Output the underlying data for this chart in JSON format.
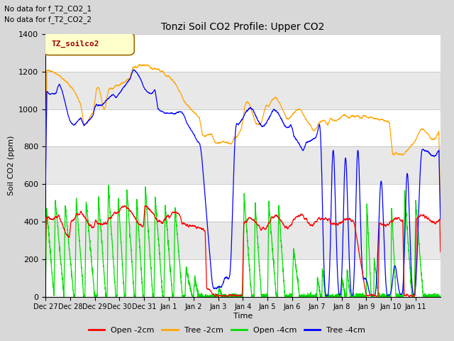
{
  "title": "Tonzi Soil CO2 Profile: Upper CO2",
  "ylabel": "Soil CO2 (ppm)",
  "xlabel": "Time",
  "subtitle_lines": [
    "No data for f_T2_CO2_1",
    "No data for f_T2_CO2_2"
  ],
  "legend_label_box": "TZ_soilco2",
  "ylim": [
    0,
    1400
  ],
  "background_color": "#d8d8d8",
  "plot_bg_color": "#d8d8d8",
  "colors": {
    "open_2cm": "#ff0000",
    "tree_2cm": "#ffa500",
    "open_4cm": "#00dd00",
    "tree_4cm": "#0000ff"
  },
  "legend_entries": [
    "Open -2cm",
    "Tree -2cm",
    "Open -4cm",
    "Tree -4cm"
  ],
  "xtick_labels": [
    "Dec 27",
    "Dec 28",
    "Dec 29",
    "Dec 30",
    "Dec 31",
    "Jan 1",
    "Jan 2",
    "Jan 3",
    "Jan 4",
    "Jan 5",
    "Jan 6",
    "Jan 7",
    "Jan 8",
    "Jan 9",
    "Jan 10",
    "Jan 11"
  ],
  "grid_colors": [
    "#ffffff",
    "#e8e8e8"
  ]
}
